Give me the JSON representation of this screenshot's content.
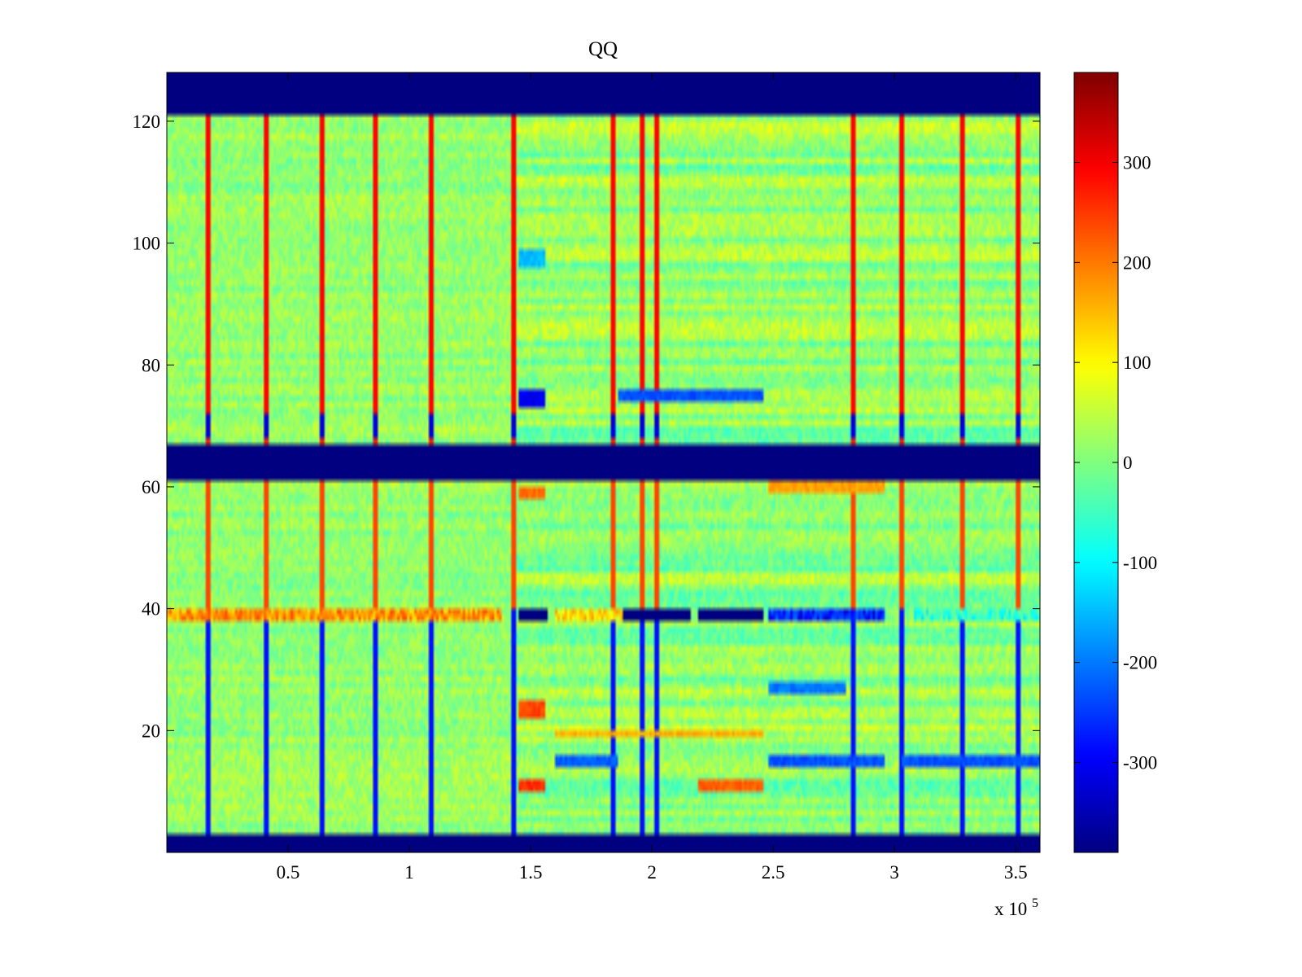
{
  "chart_data": {
    "type": "heatmap",
    "title": "QQ",
    "xlabel": "",
    "ylabel": "",
    "x_range": [
      0,
      360000
    ],
    "y_range": [
      0,
      128
    ],
    "x_ticks": [
      {
        "value": 0.5,
        "label": "0.5"
      },
      {
        "value": 1,
        "label": "1"
      },
      {
        "value": 1.5,
        "label": "1.5"
      },
      {
        "value": 2,
        "label": "2"
      },
      {
        "value": 2.5,
        "label": "2.5"
      },
      {
        "value": 3,
        "label": "3"
      },
      {
        "value": 3.5,
        "label": "3.5"
      }
    ],
    "x_multiplier": {
      "base": "x 10",
      "exponent": "5"
    },
    "y_ticks": [
      {
        "value": 20,
        "label": "20"
      },
      {
        "value": 40,
        "label": "40"
      },
      {
        "value": 60,
        "label": "60"
      },
      {
        "value": 80,
        "label": "80"
      },
      {
        "value": 100,
        "label": "100"
      },
      {
        "value": 120,
        "label": "120"
      }
    ],
    "colorbar": {
      "colormap": "jet",
      "range": [
        -390,
        390
      ],
      "ticks": [
        {
          "value": 300,
          "label": "300"
        },
        {
          "value": 200,
          "label": "200"
        },
        {
          "value": 100,
          "label": "100"
        },
        {
          "value": 0,
          "label": "0"
        },
        {
          "value": -100,
          "label": "-100"
        },
        {
          "value": -200,
          "label": "-200"
        },
        {
          "value": -300,
          "label": "-300"
        }
      ]
    },
    "saturated_row_bands": [
      {
        "y_from": 121,
        "y_to": 128,
        "value": -390
      },
      {
        "y_from": 61,
        "y_to": 67,
        "value": -390
      },
      {
        "y_from": 0,
        "y_to": 3,
        "value": -390
      }
    ],
    "vertical_event_lines_x": [
      17000,
      41000,
      64000,
      86000,
      109000,
      143000,
      184000,
      196000,
      202000,
      283000,
      303000,
      328000,
      351000
    ],
    "segment_boundaries_x": [
      143000,
      160000,
      186000,
      246000,
      296000
    ],
    "row_39_segments": [
      {
        "x_from": 0,
        "x_to": 138000,
        "value": 180
      },
      {
        "x_from": 145000,
        "x_to": 157000,
        "value": -390
      },
      {
        "x_from": 160000,
        "x_to": 188000,
        "value": 120
      },
      {
        "x_from": 188000,
        "x_to": 216000,
        "value": -390
      },
      {
        "x_from": 219000,
        "x_to": 246000,
        "value": -390
      },
      {
        "x_from": 248000,
        "x_to": 296000,
        "value": -270
      },
      {
        "x_from": 308000,
        "x_to": 360000,
        "value": -60
      }
    ],
    "highlighted_patches": [
      {
        "x_from": 145000,
        "x_to": 156000,
        "y_from": 73,
        "y_to": 76,
        "value": -300
      },
      {
        "x_from": 145000,
        "x_to": 156000,
        "y_from": 96,
        "y_to": 99,
        "value": -150
      },
      {
        "x_from": 145000,
        "x_to": 156000,
        "y_from": 22,
        "y_to": 25,
        "value": 240
      },
      {
        "x_from": 145000,
        "x_to": 156000,
        "y_from": 58,
        "y_to": 60,
        "value": 210
      },
      {
        "x_from": 145000,
        "x_to": 156000,
        "y_from": 10,
        "y_to": 12,
        "value": 260
      },
      {
        "x_from": 219000,
        "x_to": 246000,
        "y_from": 10,
        "y_to": 12,
        "value": 220
      },
      {
        "x_from": 248000,
        "x_to": 296000,
        "y_from": 14,
        "y_to": 16,
        "value": -230
      },
      {
        "x_from": 303000,
        "x_to": 360000,
        "y_from": 14,
        "y_to": 16,
        "value": -230
      },
      {
        "x_from": 248000,
        "x_to": 280000,
        "y_from": 26,
        "y_to": 28,
        "value": -200
      },
      {
        "x_from": 160000,
        "x_to": 186000,
        "y_from": 14,
        "y_to": 16,
        "value": -220
      },
      {
        "x_from": 186000,
        "x_to": 246000,
        "y_from": 74,
        "y_to": 76,
        "value": -230
      },
      {
        "x_from": 160000,
        "x_to": 246000,
        "y_from": 19,
        "y_to": 20,
        "value": 160
      },
      {
        "x_from": 248000,
        "x_to": 296000,
        "y_from": 59,
        "y_to": 61,
        "value": 170
      }
    ]
  }
}
